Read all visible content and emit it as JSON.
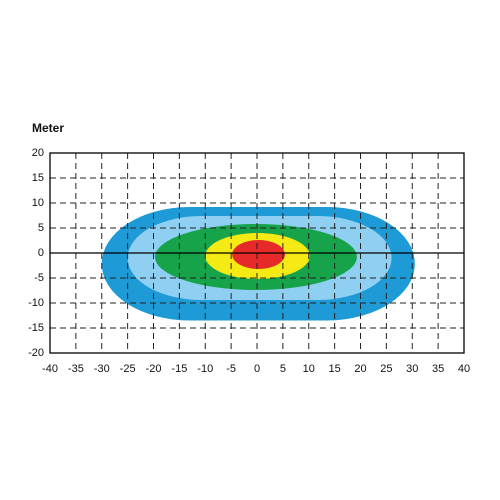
{
  "chart_data": {
    "type": "contour",
    "ylabel": "Meter",
    "xlim": [
      -40,
      40
    ],
    "xticks": [
      -40,
      -35,
      -30,
      -25,
      -20,
      -15,
      -10,
      -5,
      0,
      5,
      10,
      15,
      20,
      25,
      30,
      35,
      40
    ],
    "ylim": [
      -20,
      20
    ],
    "yticks": [
      -20,
      -15,
      -10,
      -5,
      0,
      5,
      10,
      15,
      20
    ],
    "grid": true,
    "series": [
      {
        "color": "#1e9ad6",
        "x": [
          -30,
          30.5
        ],
        "y": [
          -13.5,
          9.2
        ]
      },
      {
        "color": "#8fd0f2",
        "x": [
          -25,
          26
        ],
        "y": [
          -9.4,
          7.4
        ]
      },
      {
        "color": "#17a34a",
        "x": [
          -19.7,
          19.3
        ],
        "y": [
          -7.4,
          5.8
        ]
      },
      {
        "color": "#f5ea14",
        "x": [
          -10,
          10.2
        ],
        "y": [
          -5.2,
          4
        ]
      },
      {
        "color": "#e62a2a",
        "x": [
          -4.8,
          5.4
        ],
        "y": [
          -3.2,
          2.6
        ]
      }
    ]
  }
}
